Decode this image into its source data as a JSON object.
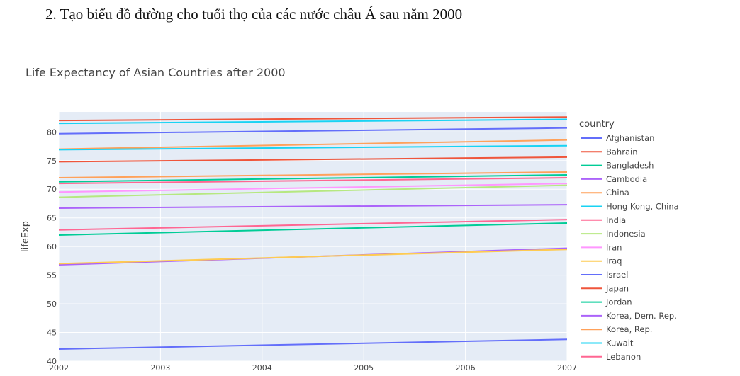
{
  "document": {
    "heading": "2.  Tạo biểu đồ đường cho tuổi thọ của các nước châu Á sau năm 2000"
  },
  "chart_data": {
    "type": "line",
    "title": "Life Expectancy of Asian Countries after 2000",
    "xlabel": "",
    "ylabel": "lifeExp",
    "xlim": [
      2002,
      2007
    ],
    "ylim": [
      40,
      83.5
    ],
    "x_ticks": [
      2002,
      2003,
      2004,
      2005,
      2006,
      2007
    ],
    "y_ticks": [
      40,
      45,
      50,
      55,
      60,
      65,
      70,
      75,
      80
    ],
    "legend_title": "country",
    "legend_position": "right",
    "grid": true,
    "background": "#e5ecf6",
    "x": [
      2002,
      2007
    ],
    "series": [
      {
        "name": "Afghanistan",
        "color": "#636efa",
        "values": [
          42.1,
          43.8
        ]
      },
      {
        "name": "Bahrain",
        "color": "#ef553b",
        "values": [
          74.8,
          75.6
        ]
      },
      {
        "name": "Bangladesh",
        "color": "#00cc96",
        "values": [
          62.0,
          64.1
        ]
      },
      {
        "name": "Cambodia",
        "color": "#ab63fa",
        "values": [
          56.8,
          59.7
        ]
      },
      {
        "name": "China",
        "color": "#ffa15a",
        "values": [
          72.0,
          73.0
        ]
      },
      {
        "name": "Hong Kong, China",
        "color": "#19d3f3",
        "values": [
          81.5,
          82.2
        ]
      },
      {
        "name": "India",
        "color": "#ff6692",
        "values": [
          62.9,
          64.7
        ]
      },
      {
        "name": "Indonesia",
        "color": "#b6e880",
        "values": [
          68.6,
          70.7
        ]
      },
      {
        "name": "Iran",
        "color": "#ff97ff",
        "values": [
          69.5,
          71.0
        ]
      },
      {
        "name": "Iraq",
        "color": "#fecb52",
        "values": [
          57.0,
          59.5
        ]
      },
      {
        "name": "Israel",
        "color": "#636efa",
        "values": [
          79.7,
          80.7
        ]
      },
      {
        "name": "Japan",
        "color": "#ef553b",
        "values": [
          82.0,
          82.6
        ]
      },
      {
        "name": "Jordan",
        "color": "#00cc96",
        "values": [
          71.3,
          72.5
        ]
      },
      {
        "name": "Korea, Dem. Rep.",
        "color": "#ab63fa",
        "values": [
          66.7,
          67.3
        ]
      },
      {
        "name": "Korea, Rep.",
        "color": "#ffa15a",
        "values": [
          77.0,
          78.6
        ]
      },
      {
        "name": "Kuwait",
        "color": "#19d3f3",
        "values": [
          76.9,
          77.6
        ]
      },
      {
        "name": "Lebanon",
        "color": "#ff6692",
        "values": [
          71.0,
          72.0
        ]
      }
    ]
  }
}
